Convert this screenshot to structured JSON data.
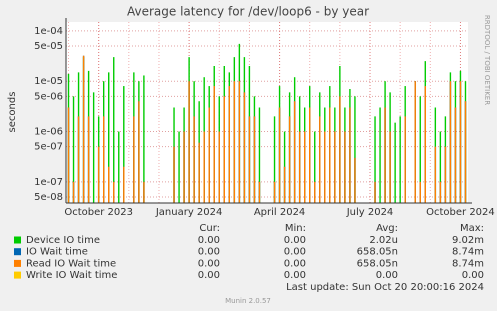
{
  "chart_data": {
    "type": "bar",
    "title": "Average latency for /dev/loop6 - by year",
    "y_label": "seconds",
    "side_text": "RRDTOOL / TOBI OETIKER",
    "log_y": true,
    "grid": true,
    "ylim": [
      3.8e-08,
      0.00015
    ],
    "yticks": [
      {
        "value": 5e-08,
        "label": "5e-08"
      },
      {
        "value": 1e-07,
        "label": "1e-07"
      },
      {
        "value": 5e-07,
        "label": "5e-07"
      },
      {
        "value": 1e-06,
        "label": "1e-06"
      },
      {
        "value": 5e-06,
        "label": "5e-06"
      },
      {
        "value": 1e-05,
        "label": "1e-05"
      },
      {
        "value": 5e-05,
        "label": "5e-05"
      },
      {
        "value": 0.0001,
        "label": "1e-04"
      }
    ],
    "categories": [
      null,
      null,
      null,
      null,
      null,
      null,
      "October 2023",
      null,
      null,
      null,
      null,
      null,
      null,
      null,
      null,
      null,
      null,
      null,
      null,
      null,
      null,
      null,
      null,
      null,
      "January 2024",
      null,
      null,
      null,
      null,
      null,
      null,
      null,
      null,
      null,
      null,
      null,
      null,
      null,
      null,
      null,
      null,
      null,
      "April 2024",
      null,
      null,
      null,
      null,
      null,
      null,
      null,
      null,
      null,
      null,
      null,
      null,
      null,
      null,
      null,
      null,
      null,
      "July 2024",
      null,
      null,
      null,
      null,
      null,
      null,
      null,
      null,
      null,
      null,
      null,
      null,
      null,
      null,
      null,
      null,
      null,
      "October 2024",
      null
    ],
    "stats_header": [
      "Cur:",
      "Min:",
      "Avg:",
      "Max:"
    ],
    "series": [
      {
        "name": "Device IO time",
        "color": "#00cc00",
        "stats": [
          "0.00",
          "0.00",
          "2.02u",
          "9.02m"
        ],
        "values": [
          1.4e-05,
          5e-06,
          1.5e-05,
          3e-05,
          1.6e-05,
          6e-06,
          2e-06,
          1e-05,
          1.5e-05,
          3e-05,
          1e-06,
          8e-06,
          null,
          1.5e-05,
          1e-05,
          1.3e-05,
          null,
          null,
          null,
          null,
          null,
          3e-06,
          1e-06,
          3e-06,
          3e-05,
          1e-05,
          4e-06,
          1.2e-05,
          8e-06,
          2e-05,
          5e-06,
          2e-05,
          1.5e-05,
          3e-05,
          5.5e-05,
          3e-05,
          2e-05,
          5e-06,
          3e-06,
          null,
          null,
          2e-06,
          8e-06,
          1e-06,
          6e-06,
          1.2e-05,
          5e-06,
          3e-06,
          8e-06,
          1e-06,
          6e-06,
          3e-06,
          8e-06,
          3e-06,
          2e-05,
          3e-06,
          7e-06,
          5e-06,
          null,
          null,
          null,
          2e-06,
          3e-06,
          1e-05,
          6e-06,
          1.5e-06,
          2e-06,
          8e-06,
          null,
          1e-05,
          5e-06,
          2.5e-05,
          null,
          3e-06,
          1e-06,
          2e-06,
          1.5e-05,
          1e-05,
          1.6e-05,
          1e-05
        ]
      },
      {
        "name": "IO Wait time",
        "color": "#0066b3",
        "stats": [
          "0.00",
          "0.00",
          "658.05n",
          "8.74m"
        ],
        "values": [
          3e-06,
          1e-07,
          2e-06,
          3.2e-05,
          2e-06,
          null,
          5e-07,
          2e-06,
          2e-07,
          1e-07,
          null,
          2e-07,
          null,
          2e-06,
          4e-06,
          1e-07,
          null,
          null,
          null,
          null,
          null,
          5e-07,
          null,
          1e-06,
          1e-05,
          2e-06,
          6e-07,
          1e-06,
          3e-06,
          8e-06,
          1e-06,
          5e-06,
          8e-06,
          1e-05,
          1e-05,
          6e-06,
          2e-06,
          2e-06,
          1e-07,
          null,
          null,
          1e-07,
          3e-06,
          2e-07,
          2e-06,
          4e-06,
          1e-06,
          1e-06,
          3e-06,
          1e-07,
          2e-06,
          1e-06,
          3e-06,
          1e-06,
          5e-06,
          1e-06,
          3e-06,
          3e-07,
          null,
          null,
          null,
          1e-07,
          null,
          3e-06,
          1e-06,
          null,
          null,
          2e-06,
          null,
          1e-05,
          1e-07,
          8e-06,
          null,
          5e-07,
          1e-07,
          5e-07,
          1e-05,
          3e-06,
          1e-05,
          4e-06
        ]
      },
      {
        "name": "Read IO Wait time",
        "color": "#ff8000",
        "stats": [
          "0.00",
          "0.00",
          "658.05n",
          "8.74m"
        ],
        "values": [
          3e-06,
          1e-07,
          2e-06,
          3.2e-05,
          2e-06,
          null,
          5e-07,
          2e-06,
          2e-07,
          1e-07,
          null,
          2e-07,
          null,
          2e-06,
          4e-06,
          1e-07,
          null,
          null,
          null,
          null,
          null,
          5e-07,
          null,
          1e-06,
          1e-05,
          2e-06,
          6e-07,
          1e-06,
          3e-06,
          8e-06,
          1e-06,
          5e-06,
          8e-06,
          1e-05,
          1e-05,
          6e-06,
          2e-06,
          2e-06,
          1e-07,
          null,
          null,
          1e-07,
          3e-06,
          2e-07,
          2e-06,
          4e-06,
          1e-06,
          1e-06,
          3e-06,
          1e-07,
          2e-06,
          1e-06,
          3e-06,
          1e-06,
          5e-06,
          1e-06,
          3e-06,
          3e-07,
          null,
          null,
          null,
          1e-07,
          null,
          3e-06,
          1e-06,
          null,
          null,
          2e-06,
          null,
          1e-05,
          1e-07,
          8e-06,
          null,
          5e-07,
          1e-07,
          5e-07,
          1e-05,
          3e-06,
          1e-05,
          4e-06
        ]
      },
      {
        "name": "Write IO Wait time",
        "color": "#ffcc00",
        "stats": [
          "0.00",
          "0.00",
          "0.00",
          "0.00"
        ],
        "values": [
          null,
          null,
          null,
          null,
          null,
          null,
          null,
          null,
          null,
          null,
          null,
          null,
          null,
          null,
          null,
          null,
          null,
          null,
          null,
          null,
          null,
          null,
          null,
          null,
          null,
          null,
          null,
          null,
          null,
          null,
          null,
          null,
          null,
          null,
          null,
          null,
          null,
          null,
          null,
          null,
          null,
          null,
          null,
          null,
          null,
          null,
          null,
          null,
          null,
          null,
          null,
          null,
          null,
          null,
          null,
          null,
          null,
          null,
          null,
          null,
          null,
          null,
          null,
          null,
          null,
          null,
          null,
          null,
          null,
          null,
          null,
          null,
          null,
          null,
          null,
          null,
          null,
          null,
          null,
          null
        ]
      }
    ],
    "last_update": "Last update: Sun Oct 20 20:00:16 2024",
    "footer": "Munin 2.0.57"
  }
}
